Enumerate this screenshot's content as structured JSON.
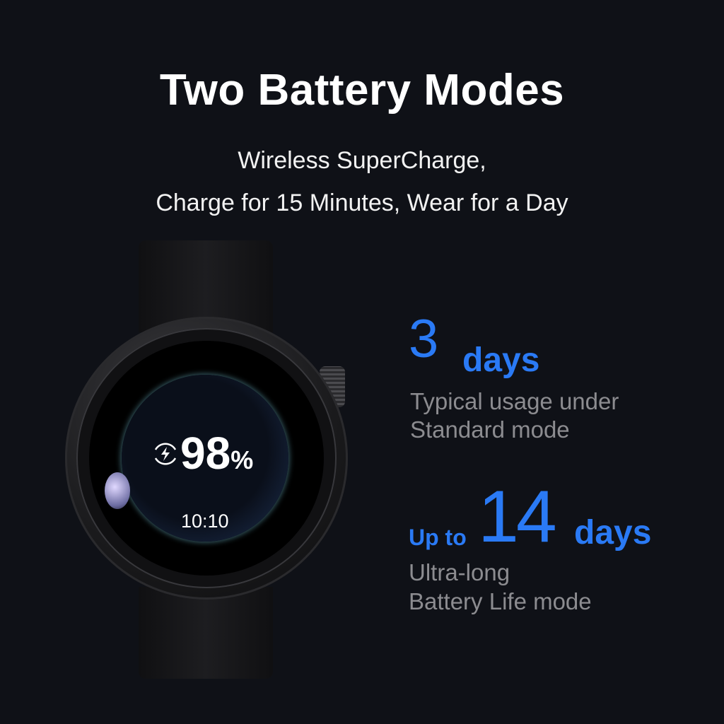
{
  "title": "Two Battery Modes",
  "subtitle_lines": [
    "Wireless SuperCharge,",
    "Charge for 15 Minutes, Wear for a Day"
  ],
  "watch": {
    "battery": "98",
    "percent_sign": "%",
    "time": "10:10",
    "charging_icon": "wireless-charging-icon"
  },
  "standard": {
    "number": "3",
    "unit": "days",
    "desc_lines": [
      "Typical usage under",
      "Standard mode"
    ]
  },
  "ultra": {
    "prefix": "Up to",
    "number": "14",
    "unit": "days",
    "desc_lines": [
      "Ultra-long",
      "Battery Life mode"
    ]
  },
  "colors": {
    "accent": "#2a7af5",
    "background": "#0f1117",
    "muted": "#8c8c90"
  }
}
